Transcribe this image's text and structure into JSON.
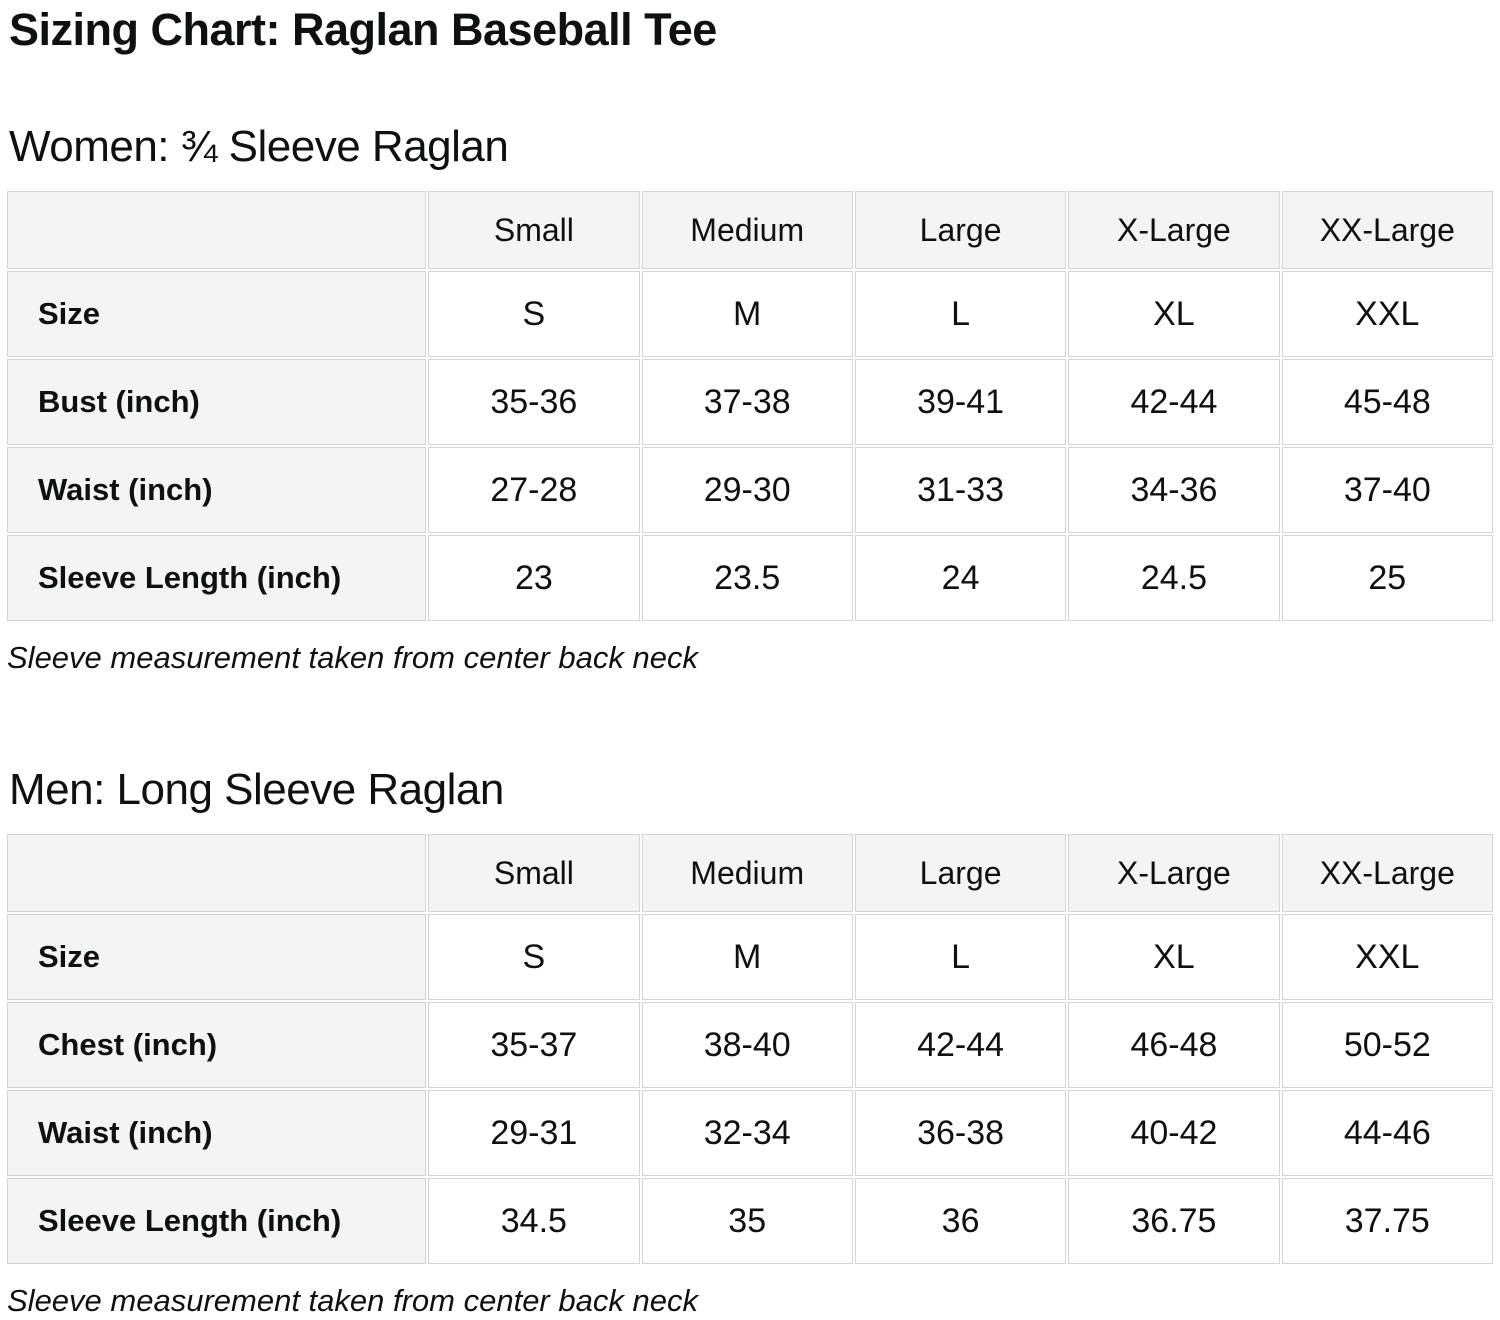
{
  "page": {
    "title": "Sizing Chart: Raglan Baseball Tee"
  },
  "colors": {
    "text": "#0f1111",
    "header_bg": "#f4f4f4",
    "label_bg": "#f4f4f4",
    "cell_bg": "#ffffff",
    "border": "#d5d5d5"
  },
  "sections": [
    {
      "heading": "Women: ¾ Sleeve Raglan",
      "note": "Sleeve measurement taken from center back neck",
      "table": {
        "columns": [
          "",
          "Small",
          "Medium",
          "Large",
          "X-Large",
          "XX-Large"
        ],
        "rows": [
          {
            "label": "Size",
            "values": [
              "S",
              "M",
              "L",
              "XL",
              "XXL"
            ]
          },
          {
            "label": "Bust (inch)",
            "values": [
              "35-36",
              "37-38",
              "39-41",
              "42-44",
              "45-48"
            ]
          },
          {
            "label": "Waist (inch)",
            "values": [
              "27-28",
              "29-30",
              "31-33",
              "34-36",
              "37-40"
            ]
          },
          {
            "label": "Sleeve Length (inch)",
            "values": [
              "23",
              "23.5",
              "24",
              "24.5",
              "25"
            ]
          }
        ]
      }
    },
    {
      "heading": "Men: Long Sleeve Raglan",
      "note": "Sleeve measurement taken from center back neck",
      "table": {
        "columns": [
          "",
          "Small",
          "Medium",
          "Large",
          "X-Large",
          "XX-Large"
        ],
        "rows": [
          {
            "label": "Size",
            "values": [
              "S",
              "M",
              "L",
              "XL",
              "XXL"
            ]
          },
          {
            "label": "Chest (inch)",
            "values": [
              "35-37",
              "38-40",
              "42-44",
              "46-48",
              "50-52"
            ]
          },
          {
            "label": "Waist (inch)",
            "values": [
              "29-31",
              "32-34",
              "36-38",
              "40-42",
              "44-46"
            ]
          },
          {
            "label": "Sleeve Length (inch)",
            "values": [
              "34.5",
              "35",
              "36",
              "36.75",
              "37.75"
            ]
          }
        ]
      }
    }
  ]
}
